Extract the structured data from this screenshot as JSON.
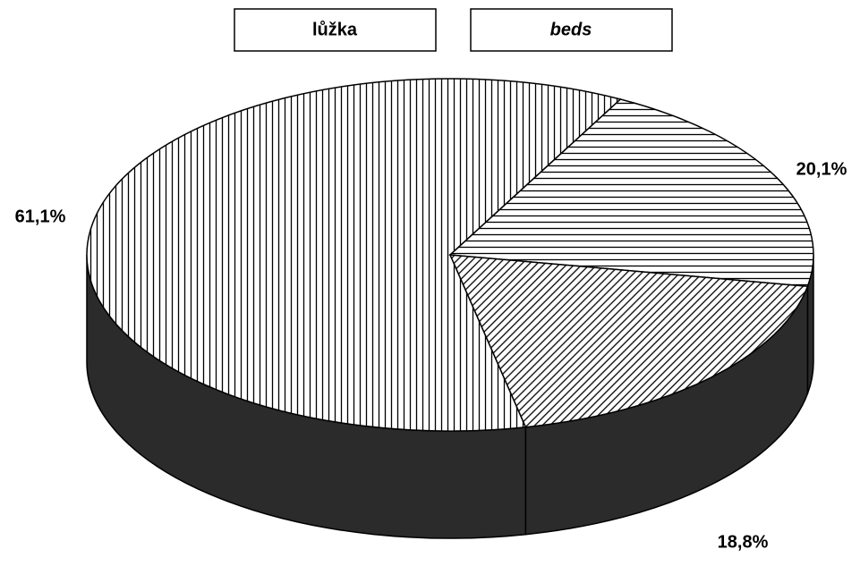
{
  "chart_data": {
    "type": "pie3d",
    "title": "lůžka",
    "subtitle": "beds",
    "values": [
      61.1,
      20.1,
      18.8
    ],
    "value_labels": [
      "61,1%",
      "20,1%",
      "18,8%"
    ],
    "patterns": [
      "vertical",
      "horizontal",
      "diagonal"
    ],
    "color": "#000000",
    "side_color": "#2b2b2b"
  }
}
